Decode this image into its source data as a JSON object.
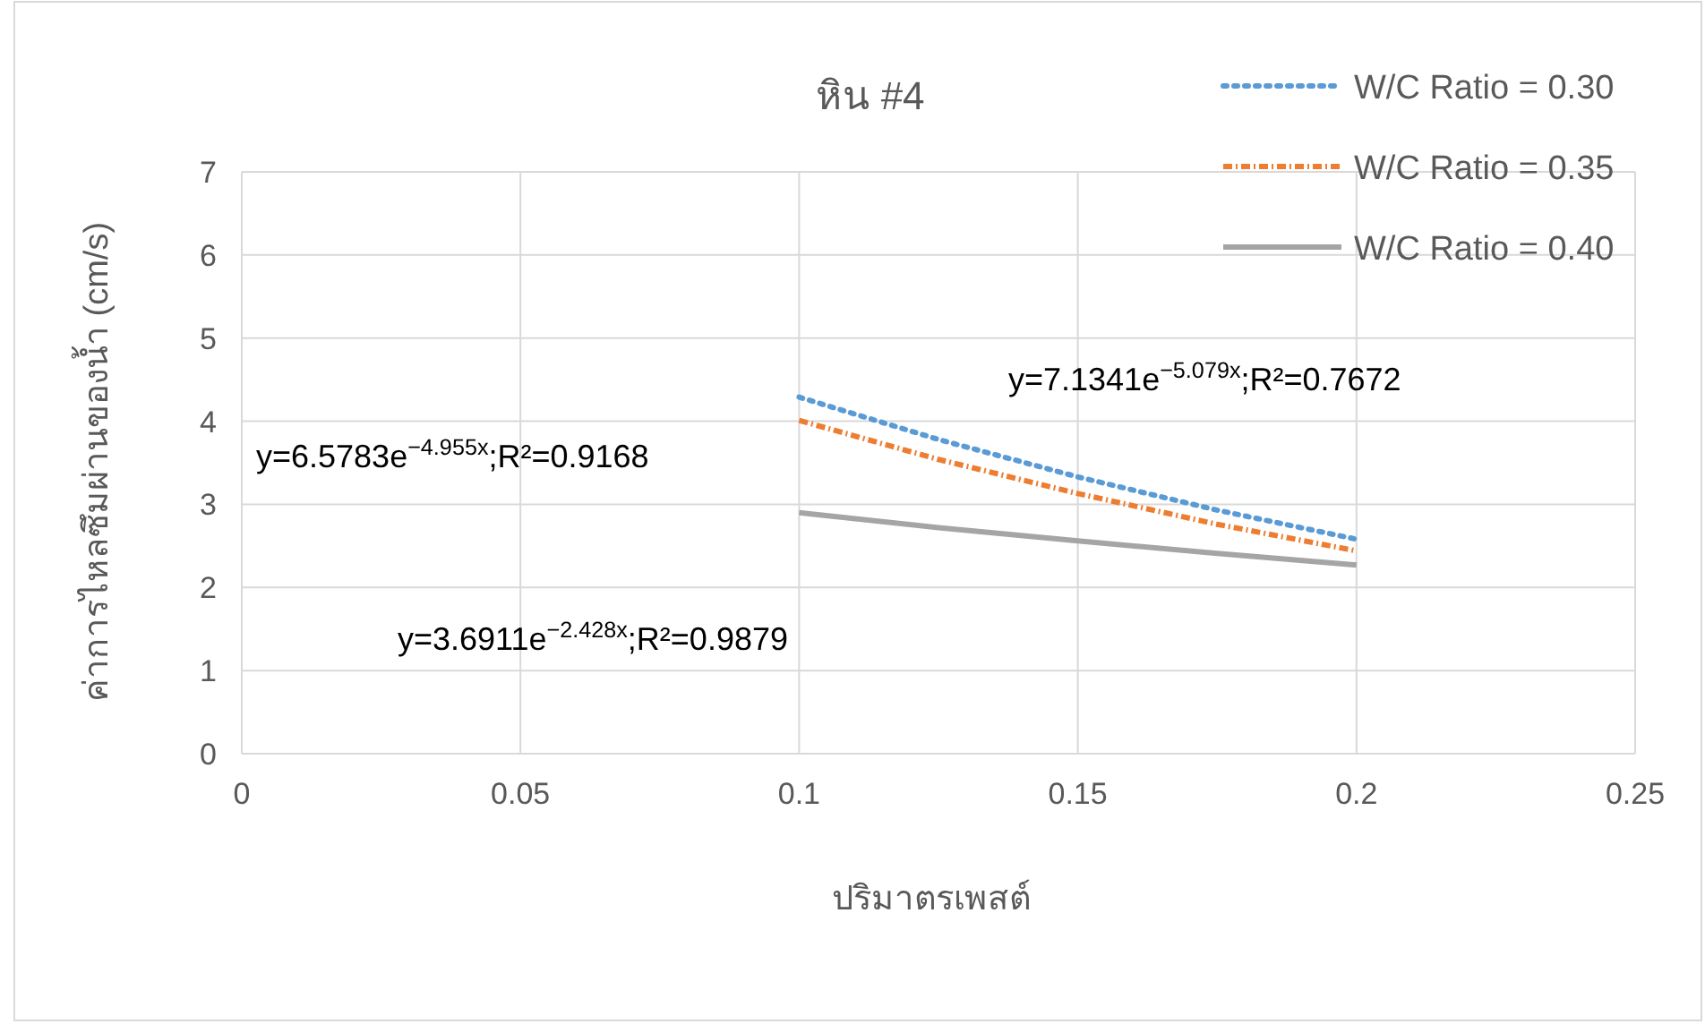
{
  "chart_data": {
    "type": "line",
    "title": "หิน #4",
    "xlabel": "ปริมาตรเพสต์",
    "ylabel": "ค่าการไหลซึมผ่านของน้ำ (cm/s)",
    "xlim": [
      0,
      0.25
    ],
    "xticks": [
      0,
      0.05,
      0.1,
      0.15,
      0.2,
      0.25
    ],
    "ylim": [
      0,
      7
    ],
    "yticks": [
      0,
      1,
      2,
      3,
      4,
      5,
      6,
      7
    ],
    "grid": true,
    "legend": "top right",
    "marker": "none",
    "series": [
      {
        "name": "W/C Ratio = 0.30",
        "color": "#5b9bd5",
        "line_style": "dotted",
        "x": [
          0.1,
          0.125,
          0.15,
          0.175,
          0.2
        ],
        "values": [
          4.29,
          3.78,
          3.33,
          2.93,
          2.58
        ]
      },
      {
        "name": "W/C Ratio = 0.35",
        "color": "#ed7d31",
        "line_style": "dashed",
        "x": [
          0.1,
          0.125,
          0.15,
          0.175,
          0.2
        ],
        "values": [
          4.01,
          3.54,
          3.13,
          2.76,
          2.44
        ]
      },
      {
        "name": "W/C Ratio = 0.40",
        "color": "#a5a5a5",
        "line_style": "solid",
        "x": [
          0.1,
          0.125,
          0.15,
          0.175,
          0.2
        ],
        "values": [
          2.9,
          2.72,
          2.56,
          2.41,
          2.27
        ]
      }
    ],
    "annotations": [
      "y=7.1341e$^{−5.079x}$;R²=0.7672",
      "y=6.5783e$^{−4.955x}$;R²=0.9168",
      "y=3.6911e$^{−2.428x}$;R²=0.9879"
    ]
  }
}
